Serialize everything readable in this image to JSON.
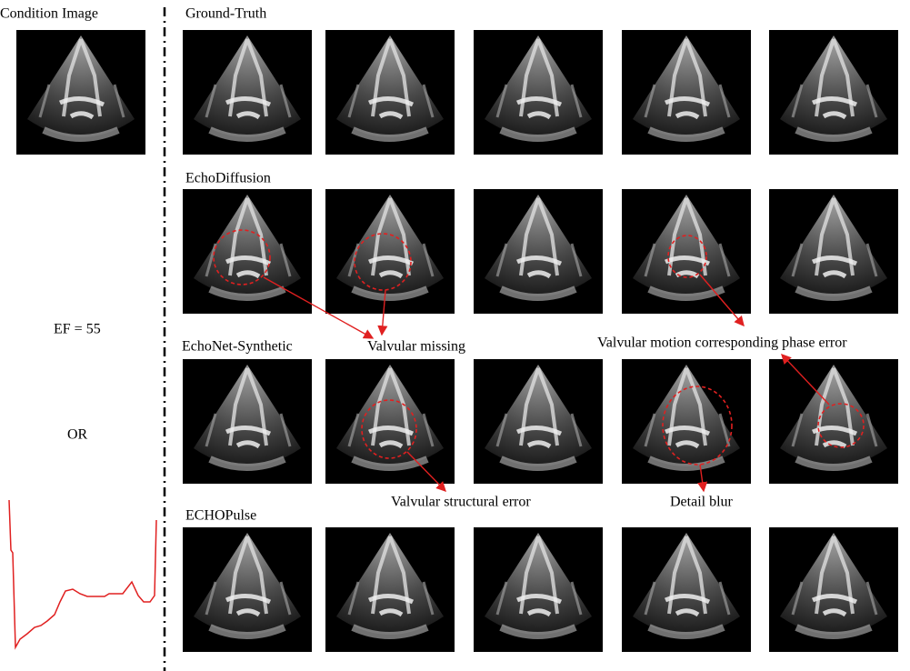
{
  "condition": {
    "title": "Condition Image",
    "ef": "EF = 55",
    "or": "OR"
  },
  "rows": [
    {
      "label": "Ground-Truth"
    },
    {
      "label": "EchoDiffusion"
    },
    {
      "label": "EchoNet-Synthetic"
    },
    {
      "label": "ECHOPulse"
    }
  ],
  "annotations": [
    "Valvular missing",
    "Valvular motion corresponding phase error",
    "Valvular structural error",
    "Detail blur"
  ]
}
